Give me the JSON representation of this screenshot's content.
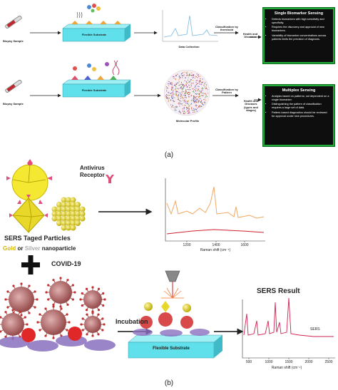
{
  "panel_a": {
    "rows": [
      {
        "sample": "Biopsy Sample",
        "substrate": "Flexible Substrate",
        "output": "Data Collection",
        "classification": "Classification by threshold",
        "result": "Health and Diseases",
        "box": {
          "title": "Single Biomarker Sensing",
          "bullets": [
            "Detects biomarkers with high sensitivity and specificity.",
            "Requires the discovery and approval of new biomarkers.",
            "Variability of biomarker concentrations across patients limits the precision of diagnosis."
          ]
        }
      },
      {
        "sample": "Biopsy Sample",
        "substrate": "Flexible Substrate",
        "output": "Molecular Profile",
        "classification": "Classification by Pattern",
        "result": "Health and Diseases (types and stages)",
        "box": {
          "title": "Multiplex Sensing",
          "bullets": [
            "Analysis based on patterns; not dependent on a single biomarker.",
            "Distinguishing the pattern of classification requires a large set of data.",
            "Pattern-based diagnostics should be reviewed for approval under new procedures."
          ]
        }
      }
    ],
    "label": "(a)"
  },
  "panel_b": {
    "receptor": [
      "Antivirus",
      "Receptor"
    ],
    "particles": "SERS Taged Particles",
    "material": [
      "Gold",
      "or",
      "Silver",
      "nanoparticle"
    ],
    "virus": "COVID-19",
    "step": "Incubation",
    "substrate": "Flexible Substrate",
    "result_title": "SERS Result",
    "spectrum1": {
      "xticks": [
        "1200",
        "1400",
        "1600"
      ],
      "xlabel": "Raman shift (cm⁻¹)"
    },
    "spectrum2": {
      "xticks": [
        "500",
        "1000",
        "1500",
        "2000",
        "2500"
      ],
      "xlabel": "Raman shift (cm⁻¹)",
      "trace_label": "SERS"
    },
    "label": "(b)"
  }
}
